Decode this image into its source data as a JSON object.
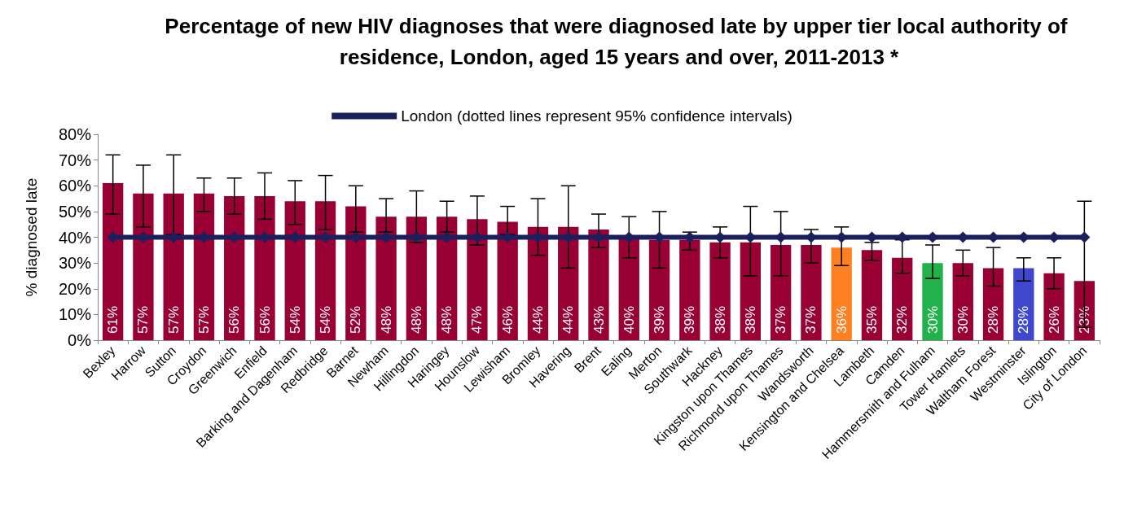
{
  "chart_data": {
    "type": "bar",
    "title": "Percentage of new HIV diagnoses that were diagnosed late by upper tier local authority of residence, London, aged 15 years and over, 2011-2013 *",
    "ylabel": "% diagnosed late",
    "categories": [
      "Bexley",
      "Harrow",
      "Sutton",
      "Croydon",
      "Greenwich",
      "Enfield",
      "Barking and Dagenham",
      "Redbridge",
      "Barnet",
      "Newham",
      "Hillingdon",
      "Haringey",
      "Hounslow",
      "Lewisham",
      "Bromley",
      "Havering",
      "Brent",
      "Ealing",
      "Merton",
      "Southwark",
      "Hackney",
      "Kingston upon Thames",
      "Richmond upon Thames",
      "Wandsworth",
      "Kensington and Chelsea",
      "Lambeth",
      "Camden",
      "Hammersmith and Fulham",
      "Tower Hamlets",
      "Waltham Forest",
      "Westminster",
      "Islington",
      "City of London"
    ],
    "series": [
      {
        "colors": [
          "#990033",
          "#990033",
          "#990033",
          "#990033",
          "#990033",
          "#990033",
          "#990033",
          "#990033",
          "#990033",
          "#990033",
          "#990033",
          "#990033",
          "#990033",
          "#990033",
          "#990033",
          "#990033",
          "#990033",
          "#990033",
          "#990033",
          "#990033",
          "#990033",
          "#990033",
          "#990033",
          "#990033",
          "#ff8020",
          "#990033",
          "#990033",
          "#22b14c",
          "#990033",
          "#990033",
          "#3f48cc",
          "#990033",
          "#990033"
        ],
        "values": [
          61,
          57,
          57,
          57,
          56,
          56,
          54,
          54,
          52,
          48,
          48,
          48,
          47,
          46,
          44,
          44,
          43,
          40,
          39,
          39,
          38,
          38,
          37,
          37,
          36,
          35,
          32,
          30,
          30,
          28,
          28,
          26,
          23
        ],
        "value_labels": [
          "61%",
          "57%",
          "57%",
          "57%",
          "56%",
          "56%",
          "54%",
          "54%",
          "52%",
          "48%",
          "48%",
          "48%",
          "47%",
          "46%",
          "44%",
          "44%",
          "43%",
          "40%",
          "39%",
          "39%",
          "38%",
          "38%",
          "37%",
          "37%",
          "36%",
          "35%",
          "32%",
          "30%",
          "30%",
          "28%",
          "28%",
          "26%",
          "23%"
        ],
        "errors": [
          [
            49,
            72
          ],
          [
            44,
            68
          ],
          [
            41,
            72
          ],
          [
            50,
            63
          ],
          [
            49,
            63
          ],
          [
            47,
            65
          ],
          [
            45,
            62
          ],
          [
            43,
            64
          ],
          [
            42,
            60
          ],
          [
            42,
            55
          ],
          [
            38,
            58
          ],
          [
            42,
            54
          ],
          [
            37,
            56
          ],
          [
            41,
            52
          ],
          [
            33,
            55
          ],
          [
            28,
            60
          ],
          [
            36,
            49
          ],
          [
            32,
            48
          ],
          [
            28,
            50
          ],
          [
            35,
            42
          ],
          [
            32,
            44
          ],
          [
            25,
            52
          ],
          [
            25,
            50
          ],
          [
            30,
            43
          ],
          [
            29,
            44
          ],
          [
            31,
            38
          ],
          [
            26,
            39
          ],
          [
            24,
            37
          ],
          [
            25,
            35
          ],
          [
            21,
            36
          ],
          [
            23,
            32
          ],
          [
            20,
            32
          ],
          [
            5,
            54
          ]
        ]
      },
      {
        "type": "line",
        "name": "London (dotted lines represent 95% confidence intervals)",
        "color": "#1a1f5e",
        "marker": "diamond",
        "values": [
          40,
          40,
          40,
          40,
          40,
          40,
          40,
          40,
          40,
          40,
          40,
          40,
          40,
          40,
          40,
          40,
          40,
          40,
          40,
          40,
          40,
          40,
          40,
          40,
          40,
          40,
          40,
          40,
          40,
          40,
          40,
          40,
          40
        ]
      }
    ],
    "ylim": [
      0,
      80
    ],
    "yticks": [
      {
        "value": 0,
        "label": "0%"
      },
      {
        "value": 10,
        "label": "10%"
      },
      {
        "value": 20,
        "label": "20%"
      },
      {
        "value": 30,
        "label": "30%"
      },
      {
        "value": 40,
        "label": "40%"
      },
      {
        "value": 50,
        "label": "50%"
      },
      {
        "value": 60,
        "label": "60%"
      },
      {
        "value": 70,
        "label": "70%"
      },
      {
        "value": 80,
        "label": "80%"
      }
    ],
    "grid": false,
    "legend": "top"
  }
}
